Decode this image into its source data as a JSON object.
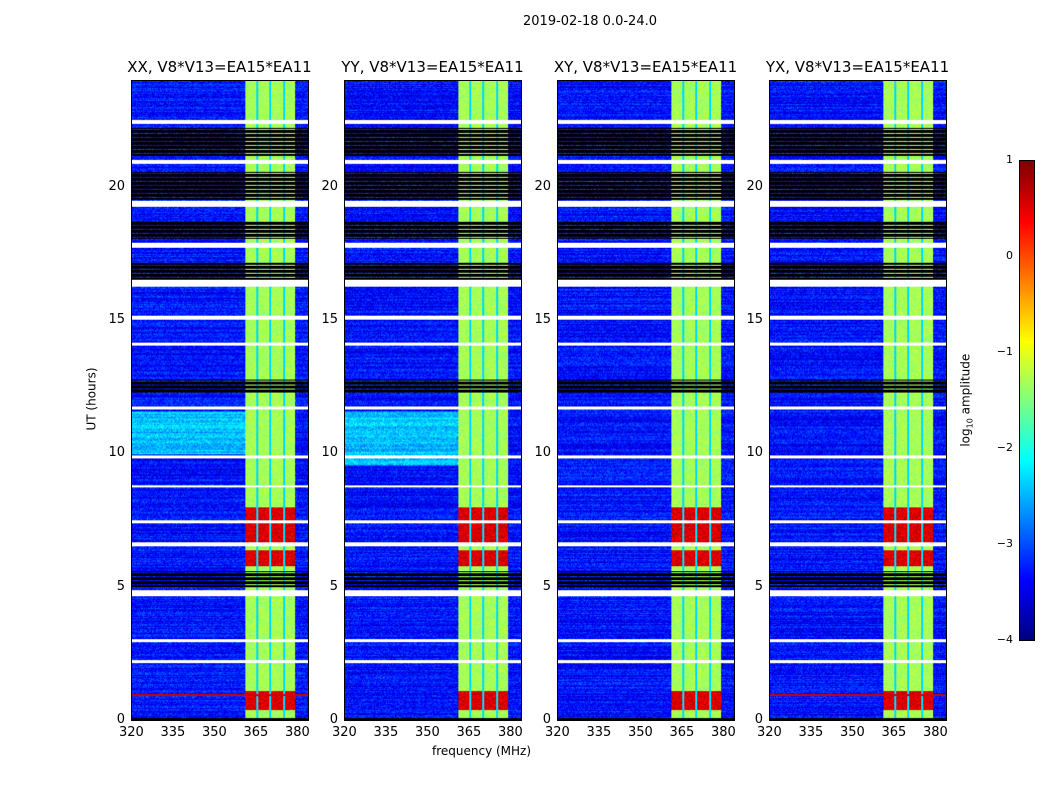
{
  "chart_data": {
    "type": "heatmap",
    "title": "2019-02-18 0.0-24.0",
    "xlabel": "frequency (MHz)",
    "ylabel": "UT (hours)",
    "xlim": [
      320,
      384
    ],
    "ylim": [
      0,
      24
    ],
    "xticks": [
      "320",
      "335",
      "350",
      "365",
      "380"
    ],
    "yticks": [
      "0",
      "5",
      "10",
      "15",
      "20"
    ],
    "panels": [
      {
        "title": "XX, V8*V13=EA15*EA11",
        "pol": "XX",
        "bright_left_hours": [
          10,
          11.6
        ]
      },
      {
        "title": "YY, V8*V13=EA15*EA11",
        "pol": "YY",
        "bright_left_hours": [
          9.6,
          11.6
        ]
      },
      {
        "title": "XY, V8*V13=EA15*EA11",
        "pol": "XY",
        "bright_left_hours": null
      },
      {
        "title": "YX, V8*V13=EA15*EA11",
        "pol": "YX",
        "bright_left_hours": null
      }
    ],
    "colorbar": {
      "label": "log10 amplitude",
      "label_main": "log",
      "label_sub": "10",
      "label_rest": " amplitude",
      "range": [
        -4,
        1
      ],
      "ticks": [
        "1",
        "0",
        "−1",
        "−2",
        "−3",
        "−4"
      ],
      "colormap": "jet"
    },
    "signal_band_mhz": [
      361,
      379
    ],
    "subband_gaps_mhz": [
      365.3,
      370.2,
      375.0
    ],
    "background_log_amp": -3.3,
    "band_log_amp": -1.3,
    "hot_hours": [
      [
        0.4,
        1.1
      ],
      [
        6.7,
        8.0
      ],
      [
        5.8,
        6.4
      ]
    ],
    "blank_hours": [
      [
        22.4,
        22.55
      ],
      [
        20.9,
        21.05
      ],
      [
        19.3,
        19.5
      ],
      [
        17.75,
        17.95
      ],
      [
        16.3,
        16.55
      ],
      [
        15.05,
        15.2
      ],
      [
        14.1,
        14.2
      ],
      [
        11.7,
        11.8
      ],
      [
        9.85,
        9.95
      ],
      [
        8.75,
        8.85
      ],
      [
        7.4,
        7.5
      ],
      [
        6.55,
        6.7
      ],
      [
        4.65,
        4.9
      ],
      [
        2.95,
        3.05
      ],
      [
        2.15,
        2.25
      ]
    ],
    "flagged_hours": [
      [
        21.2,
        22.25
      ],
      [
        19.55,
        20.6
      ],
      [
        18.1,
        18.75
      ],
      [
        16.55,
        17.2
      ],
      [
        12.3,
        12.8
      ],
      [
        5.0,
        5.6
      ],
      [
        0.0,
        0.1
      ]
    ]
  }
}
